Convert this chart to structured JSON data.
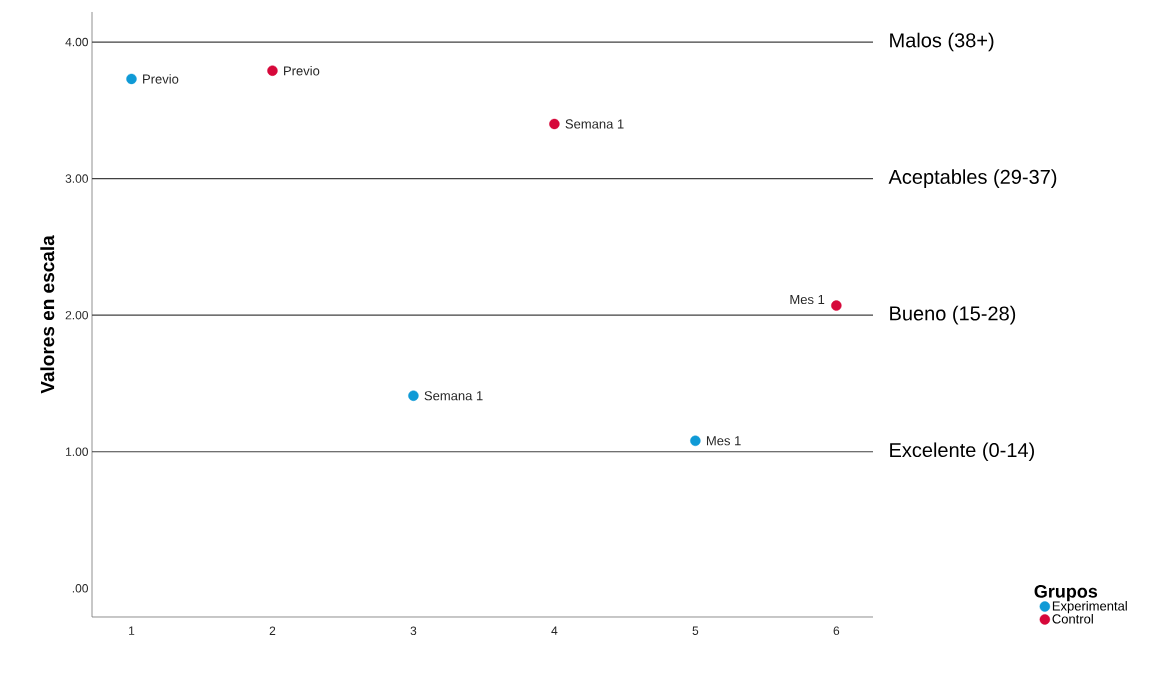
{
  "chart_data": {
    "type": "scatter",
    "ylabel": "Valores en escala",
    "legend_title": "Grupos",
    "series": [
      {
        "name": "Experimental",
        "color": "#0f9ad6",
        "x": [
          1,
          3,
          5
        ],
        "values": [
          3.73,
          1.41,
          1.08
        ]
      },
      {
        "name": "Control",
        "color": "#d6083a",
        "x": [
          2,
          4,
          6
        ],
        "values": [
          3.79,
          3.4,
          2.07
        ]
      }
    ],
    "xlim": [
      0.72,
      6.26
    ],
    "ylim": [
      -0.21,
      4.22
    ],
    "xticks": [
      1,
      2,
      3,
      4,
      5,
      6
    ],
    "yticks": [
      {
        "value": 0,
        "label": ".00"
      },
      {
        "value": 1,
        "label": "1.00"
      },
      {
        "value": 2,
        "label": "2.00"
      },
      {
        "value": 3,
        "label": "3.00"
      },
      {
        "value": 4,
        "label": "4.00"
      }
    ],
    "ref_lines": [
      {
        "axis": "y",
        "value": 4,
        "label": "Malos (38+)"
      },
      {
        "axis": "y",
        "value": 3,
        "label": "Aceptables (29-37)"
      },
      {
        "axis": "y",
        "value": 2,
        "label": "Bueno (15-28)"
      },
      {
        "axis": "y",
        "value": 1,
        "label": "Excelente (0-14)"
      }
    ],
    "annotations": [
      {
        "text": "Previo",
        "x": 1,
        "y": 3.73
      },
      {
        "text": "Previo",
        "x": 2,
        "y": 3.79
      },
      {
        "text": "Semana 1",
        "x": 4,
        "y": 3.4
      },
      {
        "text": "Mes 1",
        "x": 6,
        "y": 2.07
      },
      {
        "text": "Semana 1",
        "x": 3,
        "y": 1.41
      },
      {
        "text": "Mes 1",
        "x": 5,
        "y": 1.08
      }
    ],
    "marker": "circle",
    "grid": false,
    "legend": "bottom right"
  }
}
